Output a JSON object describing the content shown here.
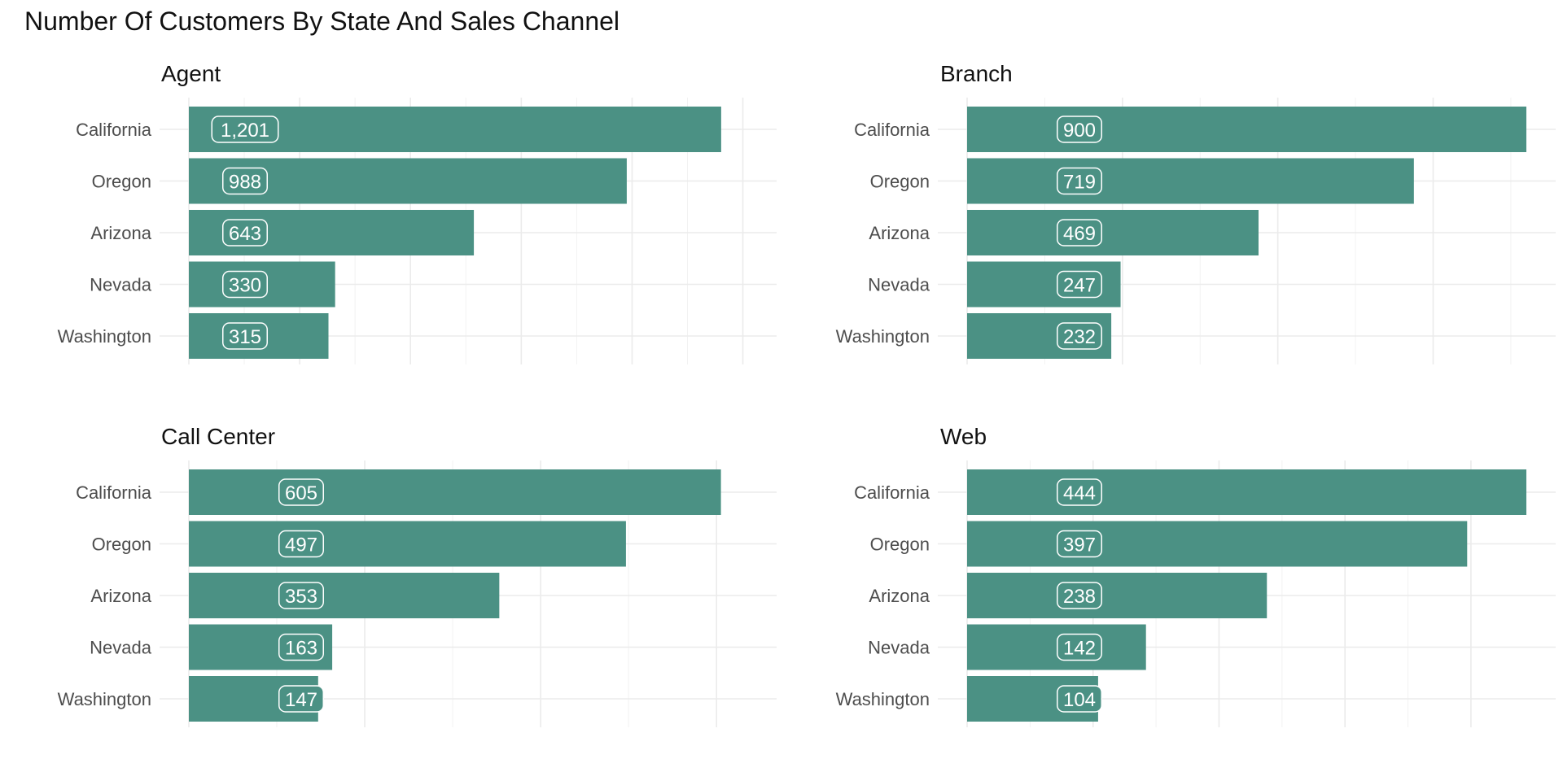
{
  "title": "Number Of Customers By State And Sales Channel",
  "colors": {
    "bar": "#4b9184",
    "label_fill": "#4b9184",
    "label_border": "#ffffff"
  },
  "chart_data": [
    {
      "type": "bar",
      "orientation": "horizontal",
      "title": "Agent",
      "categories": [
        "California",
        "Oregon",
        "Arizona",
        "Nevada",
        "Washington"
      ],
      "values": [
        1201,
        988,
        643,
        330,
        315
      ],
      "labels": [
        "1,201",
        "988",
        "643",
        "330",
        "315"
      ],
      "xlim": [
        0,
        1260
      ],
      "xticks": [
        0,
        250,
        500,
        750,
        1000,
        1250
      ],
      "grid": true
    },
    {
      "type": "bar",
      "orientation": "horizontal",
      "title": "Branch",
      "categories": [
        "California",
        "Oregon",
        "Arizona",
        "Nevada",
        "Washington"
      ],
      "values": [
        900,
        719,
        469,
        247,
        232
      ],
      "labels": [
        "900",
        "719",
        "469",
        "247",
        "232"
      ],
      "xlim": [
        0,
        900
      ],
      "xticks": [
        0,
        250,
        500,
        750
      ],
      "grid": true
    },
    {
      "type": "bar",
      "orientation": "horizontal",
      "title": "Call Center",
      "categories": [
        "California",
        "Oregon",
        "Arizona",
        "Nevada",
        "Washington"
      ],
      "values": [
        605,
        497,
        353,
        163,
        147
      ],
      "labels": [
        "605",
        "497",
        "353",
        "163",
        "147"
      ],
      "xlim": [
        0,
        635
      ],
      "xticks": [
        0,
        200,
        400,
        600
      ],
      "grid": true
    },
    {
      "type": "bar",
      "orientation": "horizontal",
      "title": "Web",
      "categories": [
        "California",
        "Oregon",
        "Arizona",
        "Nevada",
        "Washington"
      ],
      "values": [
        444,
        397,
        238,
        142,
        104
      ],
      "labels": [
        "444",
        "397",
        "238",
        "142",
        "104"
      ],
      "xlim": [
        0,
        444
      ],
      "xticks": [
        0,
        100,
        200,
        300,
        400
      ],
      "grid": true
    }
  ]
}
